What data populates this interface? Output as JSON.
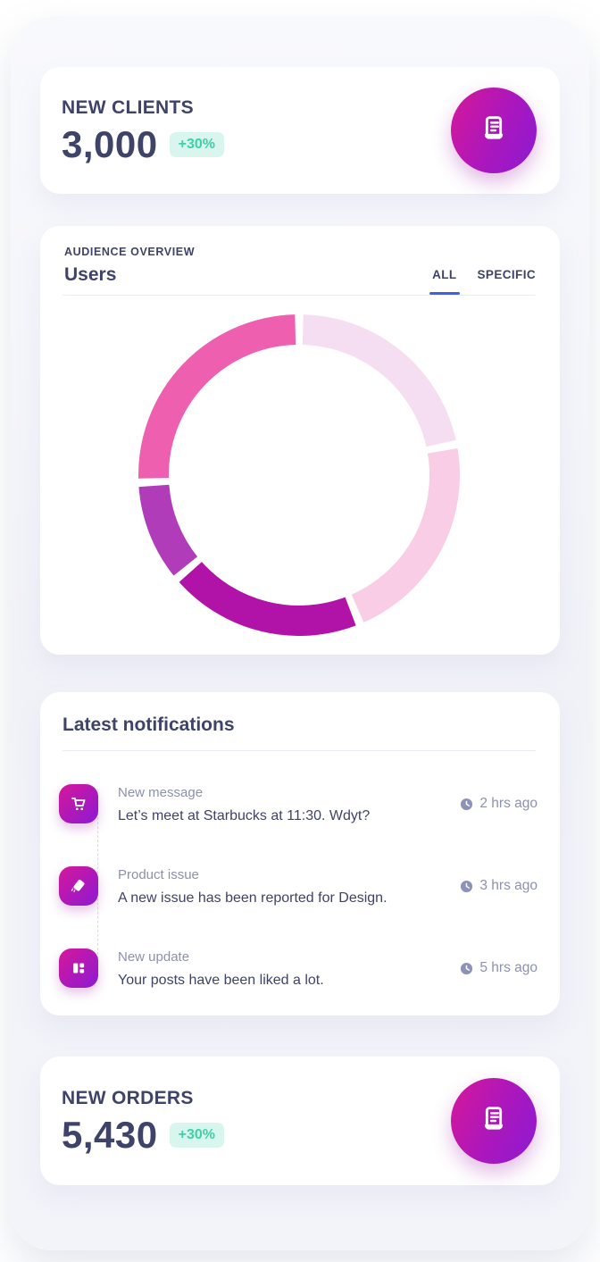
{
  "colors": {
    "accent_gradient_start": "#d6179a",
    "accent_gradient_end": "#8c1ad3",
    "badge_bg": "#d9f6ee",
    "badge_text": "#3fcfa9",
    "heading_text": "#3e4369",
    "secondary_text": "#8b91ae",
    "tab_active_underline": "#3b63e0",
    "divider": "#e9ebf3",
    "container_bg": "#f2f3f9",
    "card_bg": "#ffffff"
  },
  "new_clients": {
    "title": "NEW CLIENTS",
    "value": "3,000",
    "badge": "+30%"
  },
  "audience": {
    "label": "AUDIENCE OVERVIEW",
    "title": "Users",
    "tabs": [
      {
        "label": "ALL",
        "active": true
      },
      {
        "label": "SPECIFIC",
        "active": false
      }
    ]
  },
  "notifications": {
    "title": "Latest notifications",
    "items": [
      {
        "icon": "cart-icon",
        "title": "New message",
        "text": "Let’s meet at Starbucks at 11:30. Wdyt?",
        "time": "2 hrs ago"
      },
      {
        "icon": "tag-icon",
        "title": "Product issue",
        "text": "A new issue has been reported for Design.",
        "time": "3 hrs ago"
      },
      {
        "icon": "grid-icon",
        "title": "New update",
        "text": "Your posts have been liked a lot.",
        "time": "5 hrs ago"
      }
    ]
  },
  "new_orders": {
    "title": "NEW ORDERS",
    "value": "5,430",
    "badge": "+30%"
  },
  "chart_data": {
    "type": "pie",
    "donut": true,
    "title": "Users",
    "legend_position": "none",
    "start_angle_deg": 0,
    "gap_deg": 3,
    "segments": [
      {
        "value": 22,
        "color": "#f6def2"
      },
      {
        "value": 22,
        "color": "#f9cde6"
      },
      {
        "value": 20,
        "color": "#b112a8"
      },
      {
        "value": 10,
        "color": "#b13cba"
      },
      {
        "value": 26,
        "color": "#ef5fb0"
      }
    ]
  }
}
